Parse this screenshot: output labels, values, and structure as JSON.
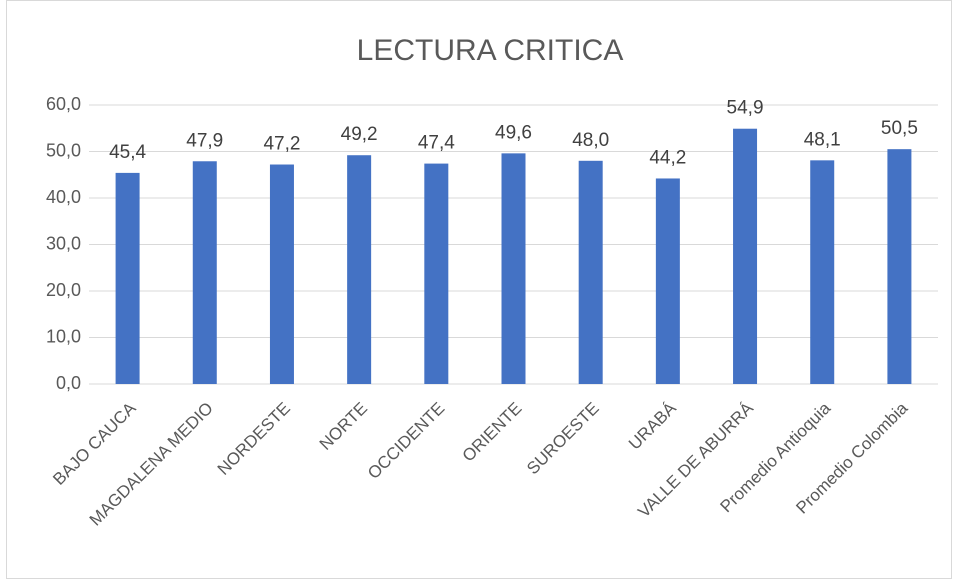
{
  "chart_data": {
    "type": "bar",
    "title": "LECTURA CRITICA",
    "categories": [
      "BAJO CAUCA",
      "MAGDALENA MEDIO",
      "NORDESTE",
      "NORTE",
      "OCCIDENTE",
      "ORIENTE",
      "SUROESTE",
      "URABÁ",
      "VALLE DE ABURRÁ",
      "Promedio Antioquia",
      "Promedio Colombia"
    ],
    "values": [
      45.4,
      47.9,
      47.2,
      49.2,
      47.4,
      49.6,
      48.0,
      44.2,
      54.9,
      48.1,
      50.5
    ],
    "value_labels": [
      "45,4",
      "47,9",
      "47,2",
      "49,2",
      "47,4",
      "49,6",
      "48,0",
      "44,2",
      "54,9",
      "48,1",
      "50,5"
    ],
    "color": "#4472c4",
    "ylim": [
      0,
      60
    ],
    "yticks": [
      {
        "value": 0,
        "label": "0,0"
      },
      {
        "value": 10,
        "label": "10,0"
      },
      {
        "value": 20,
        "label": "20,0"
      },
      {
        "value": 30,
        "label": "30,0"
      },
      {
        "value": 40,
        "label": "40,0"
      },
      {
        "value": 50,
        "label": "50,0"
      },
      {
        "value": 60,
        "label": "60,0"
      }
    ],
    "grid": true
  }
}
